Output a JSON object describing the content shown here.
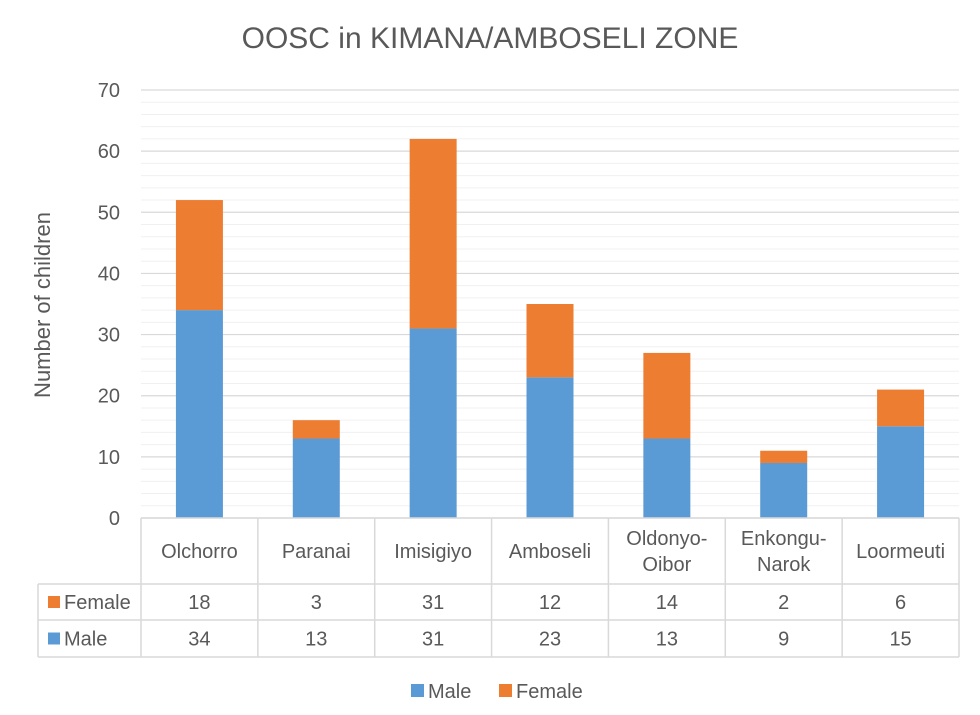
{
  "chart_data": {
    "type": "bar",
    "stacked": true,
    "title": "OOSC in KIMANA/AMBOSELI ZONE",
    "xlabel": "",
    "ylabel": "Number of children",
    "ylim": [
      0,
      70
    ],
    "yticks": [
      0,
      10,
      20,
      30,
      40,
      50,
      60,
      70
    ],
    "grid": true,
    "legend_position": "bottom",
    "categories": [
      [
        "Olchorro"
      ],
      [
        "Paranai"
      ],
      [
        "Imisigiyo"
      ],
      [
        "Amboseli"
      ],
      [
        "Oldonyo-",
        "Oibor"
      ],
      [
        "Enkongu-",
        "Narok"
      ],
      [
        "Loormeuti"
      ]
    ],
    "series": [
      {
        "name": "Male",
        "color": "#5b9bd5",
        "values": [
          34,
          13,
          31,
          23,
          13,
          9,
          15
        ]
      },
      {
        "name": "Female",
        "color": "#ed7d31",
        "values": [
          18,
          3,
          31,
          12,
          14,
          2,
          6
        ]
      }
    ],
    "data_table": {
      "row_order": [
        "Female",
        "Male"
      ]
    }
  }
}
